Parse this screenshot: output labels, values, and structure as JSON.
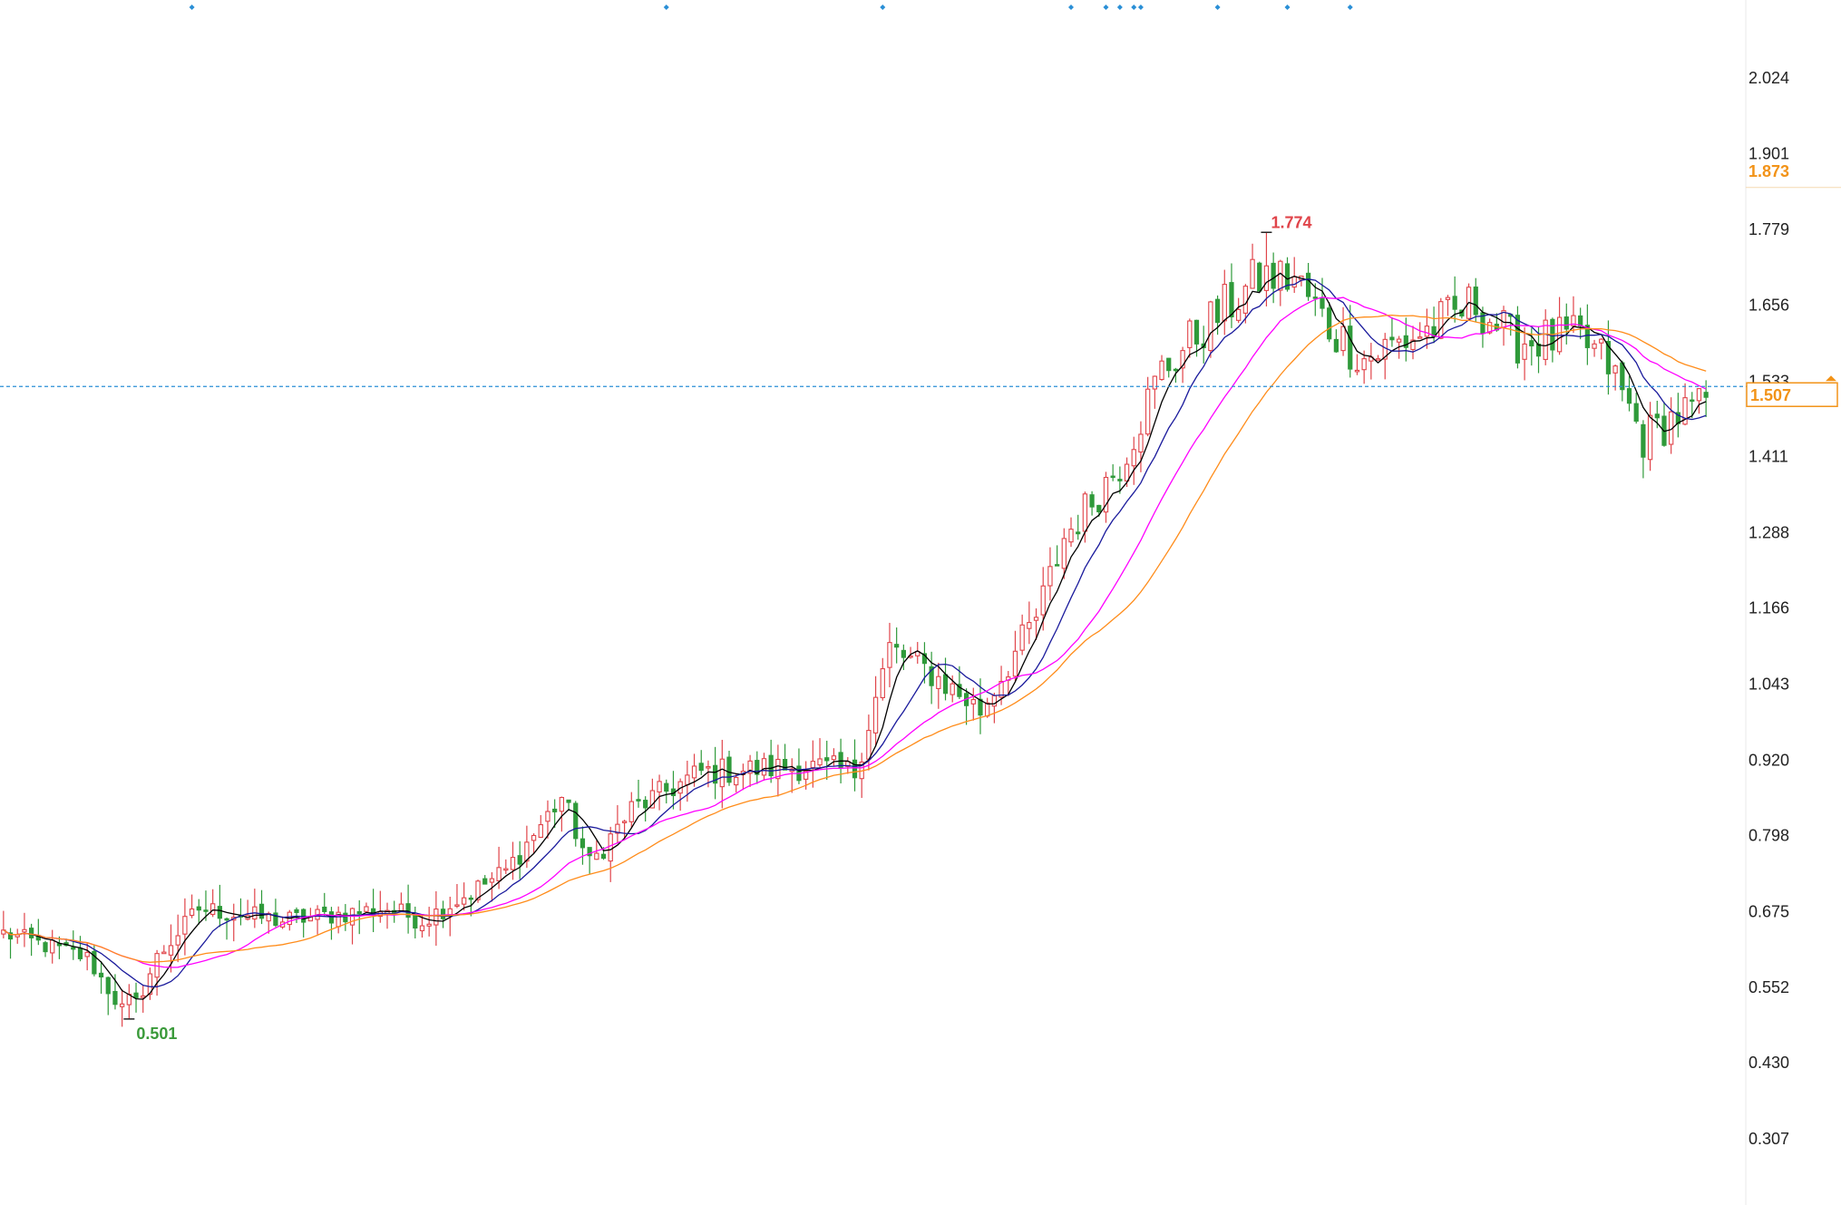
{
  "chart_data": {
    "type": "candlestick",
    "title": "",
    "xlabel": "",
    "ylabel": "",
    "grid": false,
    "y_axis": {
      "position": "right",
      "ylim": [
        0.2,
        2.15
      ],
      "tick_values": [
        0.307,
        0.43,
        0.552,
        0.675,
        0.798,
        0.92,
        1.043,
        1.166,
        1.288,
        1.411,
        1.533,
        1.656,
        1.779,
        1.901,
        2.024
      ],
      "tick_labels": [
        "0.307",
        "0.430",
        "0.552",
        "0.675",
        "0.798",
        "0.920",
        "1.043",
        "1.166",
        "1.288",
        "1.411",
        "1.533",
        "1.656",
        "1.779",
        "1.901",
        "2.024"
      ]
    },
    "bar_count": 245,
    "price_path": [
      [
        0,
        0.64
      ],
      [
        12,
        0.6
      ],
      [
        18,
        0.5
      ],
      [
        22,
        0.6
      ],
      [
        28,
        0.68
      ],
      [
        40,
        0.66
      ],
      [
        55,
        0.68
      ],
      [
        60,
        0.66
      ],
      [
        72,
        0.74
      ],
      [
        80,
        0.86
      ],
      [
        84,
        0.75
      ],
      [
        90,
        0.84
      ],
      [
        100,
        0.9
      ],
      [
        115,
        0.91
      ],
      [
        122,
        0.9
      ],
      [
        127,
        1.1
      ],
      [
        133,
        1.06
      ],
      [
        140,
        1.0
      ],
      [
        148,
        1.15
      ],
      [
        152,
        1.28
      ],
      [
        160,
        1.4
      ],
      [
        166,
        1.55
      ],
      [
        172,
        1.62
      ],
      [
        180,
        1.7
      ],
      [
        185,
        1.7
      ],
      [
        190,
        1.62
      ],
      [
        195,
        1.57
      ],
      [
        205,
        1.62
      ],
      [
        211,
        1.66
      ],
      [
        216,
        1.6
      ],
      [
        226,
        1.6
      ],
      [
        230,
        1.56
      ],
      [
        235,
        1.44
      ],
      [
        240,
        1.48
      ],
      [
        244,
        1.49
      ]
    ],
    "annotations": {
      "high": {
        "value": 1.774,
        "label": "1.774",
        "bar_index": 181
      },
      "low": {
        "value": 0.501,
        "label": "0.501",
        "bar_index": 18
      }
    },
    "current_price": {
      "value": 1.507,
      "label": "1.507"
    },
    "marker_price": {
      "value": 1.873,
      "label": "1.873"
    },
    "series": [
      {
        "name": "",
        "kind": "moving_average",
        "period": 5,
        "color": "#000000"
      },
      {
        "name": "",
        "kind": "moving_average",
        "period": 10,
        "color": "#1a1a9c"
      },
      {
        "name": "",
        "kind": "moving_average",
        "period": 20,
        "color": "#ff00ff"
      },
      {
        "name": "",
        "kind": "moving_average",
        "period": 30,
        "color": "#ff8c1a"
      }
    ],
    "event_markers_bar_index": [
      27,
      95,
      126,
      153,
      158,
      160,
      162,
      163,
      174,
      184,
      193
    ],
    "colors": {
      "up": "#e0444a",
      "down": "#2f9a3a",
      "current_price_line": "#2a8fd6",
      "orange": "#f29318",
      "high_label": "#e0444a",
      "low_label": "#3a9a3a",
      "event_marker": "#2a8fd6",
      "axis_text": "#222222"
    }
  }
}
